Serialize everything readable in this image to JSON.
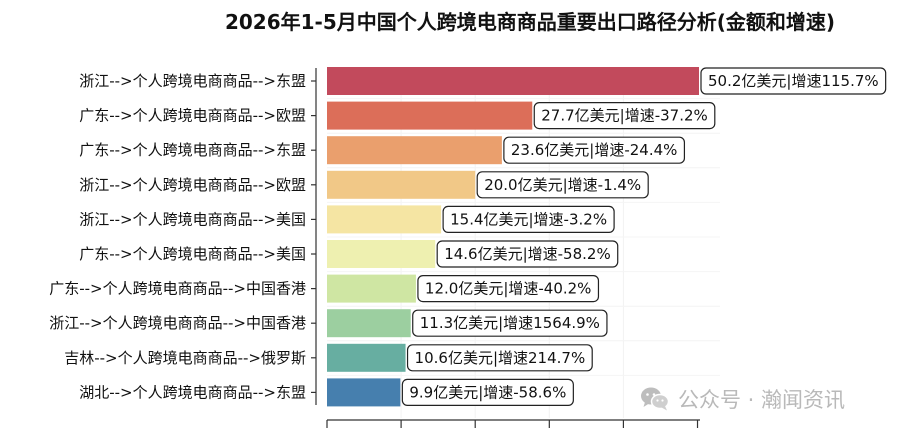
{
  "chart_data": {
    "type": "bar",
    "orientation": "horizontal",
    "title": "2026年1-5月中国个人跨境电商商品重要出口路径分析(金额和增速)",
    "xlabel": "",
    "ylabel": "",
    "xlim": [
      0,
      50.2
    ],
    "grid": "x",
    "legend": "none",
    "categories": [
      "浙江-->个人跨境电商商品-->东盟",
      "广东-->个人跨境电商商品-->欧盟",
      "广东-->个人跨境电商商品-->东盟",
      "浙江-->个人跨境电商商品-->欧盟",
      "浙江-->个人跨境电商商品-->美国",
      "广东-->个人跨境电商商品-->美国",
      "广东-->个人跨境电商商品-->中国香港",
      "浙江-->个人跨境电商商品-->中国香港",
      "吉林-->个人跨境电商商品-->俄罗斯",
      "湖北-->个人跨境电商商品-->东盟"
    ],
    "values": [
      50.2,
      27.7,
      23.6,
      20.0,
      15.4,
      14.6,
      12.0,
      11.3,
      10.6,
      9.9
    ],
    "growth": [
      "115.7%",
      "-37.2%",
      "-24.4%",
      "-1.4%",
      "-3.2%",
      "-58.2%",
      "-40.2%",
      "1564.9%",
      "214.7%",
      "-58.6%"
    ],
    "data_labels": [
      "50.2亿美元|增速115.7%",
      "27.7亿美元|增速-37.2%",
      "23.6亿美元|增速-24.4%",
      "20.0亿美元|增速-1.4%",
      "15.4亿美元|增速-3.2%",
      "14.6亿美元|增速-58.2%",
      "12.0亿美元|增速-40.2%",
      "11.3亿美元|增速1564.9%",
      "10.6亿美元|增速214.7%",
      "9.9亿美元|增速-58.6%"
    ],
    "colors": [
      "#c24a5c",
      "#dc6e59",
      "#ea9f6d",
      "#f1c887",
      "#f5e5a3",
      "#eef0b0",
      "#cfe6a3",
      "#9ccfa0",
      "#67aea1",
      "#467fae"
    ]
  },
  "watermark": {
    "text": "公众号 · 瀚闻资讯",
    "icon": "wechat-icon"
  }
}
